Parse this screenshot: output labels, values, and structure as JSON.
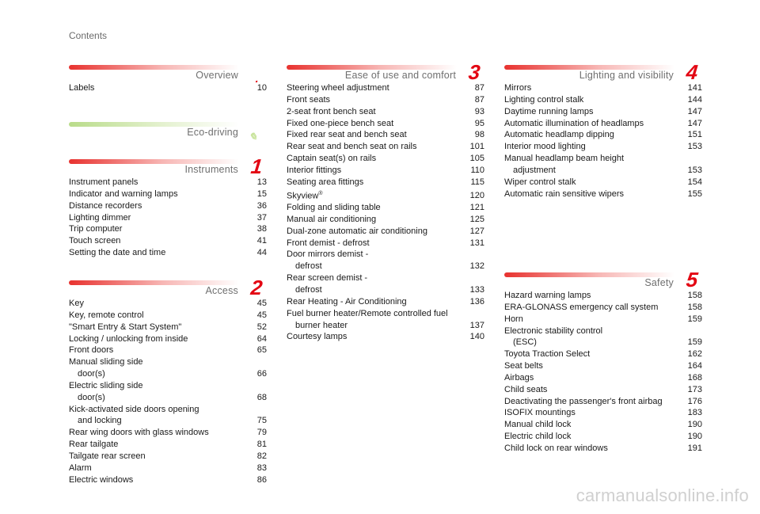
{
  "header": {
    "title": "Contents"
  },
  "colors": {
    "accent": "#e30613",
    "bar_red": "#e8322f",
    "bar_green": "#b9dc8a",
    "title_gray": "#6f6f6f"
  },
  "sections": {
    "overview": {
      "title": "Overview",
      "num": ".",
      "items": [
        {
          "label": "Labels",
          "page": "10"
        }
      ]
    },
    "eco": {
      "title": "Eco-driving",
      "num": "",
      "items": []
    },
    "instruments": {
      "title": "Instruments",
      "num": "1",
      "items": [
        {
          "label": "Instrument panels",
          "page": "13"
        },
        {
          "label": "Indicator and warning lamps",
          "page": "15"
        },
        {
          "label": "Distance recorders",
          "page": "36"
        },
        {
          "label": "Lighting dimmer",
          "page": "37"
        },
        {
          "label": "Trip computer",
          "page": "38"
        },
        {
          "label": "Touch screen",
          "page": "41"
        },
        {
          "label": "Setting the date and time",
          "page": "44"
        }
      ]
    },
    "access": {
      "title": "Access",
      "num": "2",
      "items": [
        {
          "label": "Key",
          "page": "45"
        },
        {
          "label": "Key, remote control",
          "page": "45"
        },
        {
          "label": "\"Smart Entry & Start System\"",
          "page": "52"
        },
        {
          "label": "Locking / unlocking from inside",
          "page": "64"
        },
        {
          "label": "Front doors",
          "page": "65"
        },
        {
          "label": "Manual sliding side",
          "cont": "door(s)",
          "page": "66"
        },
        {
          "label": "Electric sliding side",
          "cont": "door(s)",
          "page": "68"
        },
        {
          "label": "Kick-activated side doors opening",
          "cont": "and locking",
          "page": "75"
        },
        {
          "label": "Rear wing doors with glass windows",
          "page": "79"
        },
        {
          "label": "Rear tailgate",
          "page": "81"
        },
        {
          "label": "Tailgate rear screen",
          "page": "82"
        },
        {
          "label": "Alarm",
          "page": "83"
        },
        {
          "label": "Electric windows",
          "page": "86"
        }
      ]
    },
    "ease": {
      "title": "Ease of use and comfort",
      "num": "3",
      "items": [
        {
          "label": "Steering wheel adjustment",
          "page": "87"
        },
        {
          "label": "Front seats",
          "page": "87"
        },
        {
          "label": "2-seat front bench seat",
          "page": "93"
        },
        {
          "label": "Fixed one-piece bench seat",
          "page": "95"
        },
        {
          "label": "Fixed rear seat and bench seat",
          "page": "98"
        },
        {
          "label": "Rear seat and bench seat on rails",
          "page": "101"
        },
        {
          "label": "Captain seat(s) on rails",
          "page": "105"
        },
        {
          "label": "Interior fittings",
          "page": "110"
        },
        {
          "label": "Seating area fittings",
          "page": "115"
        },
        {
          "label": "Skyview",
          "sup": "®",
          "page": "120"
        },
        {
          "label": "Folding and sliding table",
          "page": "121"
        },
        {
          "label": "Manual air conditioning",
          "page": "125"
        },
        {
          "label": "Dual-zone automatic air conditioning",
          "page": "127"
        },
        {
          "label": "Front demist - defrost",
          "page": "131"
        },
        {
          "label": "Door mirrors demist -",
          "cont": "defrost",
          "page": "132"
        },
        {
          "label": "Rear screen demist -",
          "cont": "defrost",
          "page": "133"
        },
        {
          "label": "Rear Heating - Air Conditioning",
          "page": "136"
        },
        {
          "label": "Fuel burner heater/Remote controlled fuel",
          "cont": "burner heater",
          "page": "137"
        },
        {
          "label": "Courtesy lamps",
          "page": "140"
        }
      ]
    },
    "lighting": {
      "title": "Lighting and visibility",
      "num": "4",
      "items": [
        {
          "label": "Mirrors",
          "page": "141"
        },
        {
          "label": "Lighting control stalk",
          "page": "144"
        },
        {
          "label": "Daytime running lamps",
          "page": "147"
        },
        {
          "label": "Automatic illumination of headlamps",
          "page": "147"
        },
        {
          "label": "Automatic headlamp dipping",
          "page": "151"
        },
        {
          "label": "Interior mood lighting",
          "page": "153"
        },
        {
          "label": "Manual headlamp beam height",
          "cont": "adjustment",
          "page": "153"
        },
        {
          "label": "Wiper control stalk",
          "page": "154"
        },
        {
          "label": "Automatic rain sensitive wipers",
          "page": "155"
        }
      ]
    },
    "safety": {
      "title": "Safety",
      "num": "5",
      "items": [
        {
          "label": "Hazard warning lamps",
          "page": "158"
        },
        {
          "label": "ERA-GLONASS emergency call system",
          "page": "158"
        },
        {
          "label": "Horn",
          "page": "159"
        },
        {
          "label": "Electronic stability control",
          "cont": "(ESC)",
          "page": "159"
        },
        {
          "label": "Toyota Traction Select",
          "page": "162"
        },
        {
          "label": "Seat belts",
          "page": "164"
        },
        {
          "label": "Airbags",
          "page": "168"
        },
        {
          "label": "Child seats",
          "page": "173"
        },
        {
          "label": "Deactivating the passenger's front airbag",
          "page": "176"
        },
        {
          "label": "ISOFIX mountings",
          "page": "183"
        },
        {
          "label": "Manual child lock",
          "page": "190"
        },
        {
          "label": "Electric child lock",
          "page": "190"
        },
        {
          "label": "Child lock on rear windows",
          "page": "191"
        }
      ]
    }
  },
  "watermark": "carmanualsonline.info"
}
